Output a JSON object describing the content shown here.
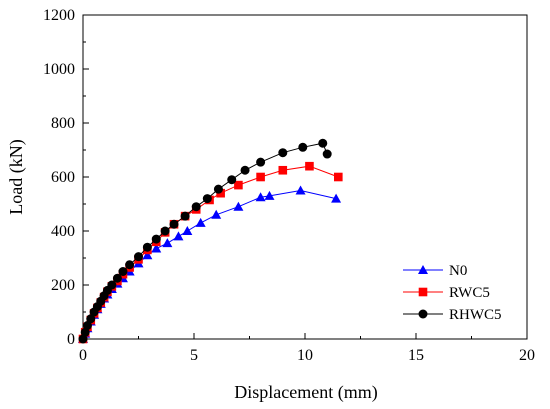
{
  "chart_data": {
    "type": "line",
    "title": "",
    "xlabel": "Displacement (mm)",
    "ylabel": "Load (kN)",
    "xlim": [
      0,
      20
    ],
    "ylim": [
      0,
      1200
    ],
    "xticks": [
      0,
      5,
      10,
      15,
      20
    ],
    "yticks": [
      0,
      200,
      400,
      600,
      800,
      1000,
      1200
    ],
    "xtick_labels": [
      "0",
      "5",
      "10",
      "15",
      "20"
    ],
    "ytick_labels": [
      "0",
      "200",
      "400",
      "600",
      "800",
      "1000",
      "1200"
    ],
    "grid": false,
    "legend_position": "bottom-right",
    "series": [
      {
        "name": "N0",
        "color": "#0000ff",
        "marker": "triangle",
        "x": [
          0,
          0.1,
          0.2,
          0.35,
          0.5,
          0.65,
          0.8,
          0.95,
          1.1,
          1.3,
          1.55,
          1.8,
          2.1,
          2.5,
          2.9,
          3.3,
          3.8,
          4.3,
          4.7,
          5.3,
          6.0,
          7.0,
          8.0,
          8.4,
          9.8,
          11.4
        ],
        "y": [
          0,
          20,
          40,
          65,
          90,
          110,
          130,
          150,
          165,
          185,
          205,
          225,
          250,
          280,
          310,
          335,
          355,
          380,
          400,
          430,
          460,
          490,
          525,
          530,
          550,
          520
        ]
      },
      {
        "name": "RWC5",
        "color": "#ff0000",
        "marker": "square",
        "x": [
          0,
          0.1,
          0.2,
          0.35,
          0.5,
          0.65,
          0.8,
          0.95,
          1.1,
          1.3,
          1.55,
          1.8,
          2.1,
          2.5,
          2.9,
          3.3,
          3.7,
          4.1,
          4.6,
          5.1,
          5.7,
          6.2,
          7.0,
          8.0,
          9.0,
          10.2,
          11.5
        ],
        "y": [
          0,
          25,
          45,
          70,
          95,
          115,
          135,
          155,
          175,
          195,
          215,
          240,
          265,
          295,
          330,
          360,
          395,
          425,
          455,
          480,
          515,
          540,
          570,
          600,
          625,
          640,
          600
        ]
      },
      {
        "name": "RHWC5",
        "color": "#000000",
        "marker": "circle",
        "x": [
          0,
          0.1,
          0.2,
          0.35,
          0.5,
          0.65,
          0.8,
          0.95,
          1.1,
          1.3,
          1.55,
          1.8,
          2.1,
          2.5,
          2.9,
          3.3,
          3.7,
          4.1,
          4.6,
          5.1,
          5.6,
          6.1,
          6.7,
          7.3,
          8.0,
          9.0,
          9.9,
          10.8,
          11.0
        ],
        "y": [
          0,
          25,
          50,
          75,
          100,
          120,
          140,
          160,
          180,
          200,
          225,
          250,
          275,
          305,
          340,
          370,
          400,
          425,
          455,
          490,
          520,
          555,
          590,
          625,
          655,
          690,
          710,
          725,
          685
        ]
      }
    ]
  }
}
